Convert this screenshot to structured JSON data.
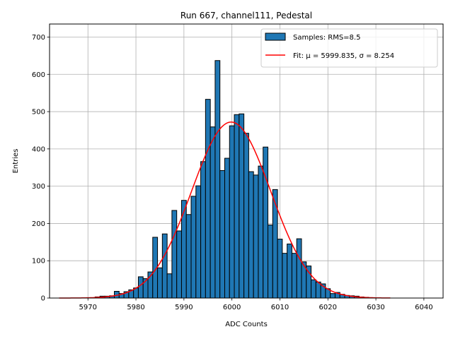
{
  "chart_data": {
    "type": "bar",
    "title": "Run 667, channel111, Pedestal",
    "xlabel": "ADC Counts",
    "ylabel": "Entries",
    "xlim": [
      5962,
      6044
    ],
    "ylim": [
      0,
      735
    ],
    "xticks": [
      5970,
      5980,
      5990,
      6000,
      6010,
      6020,
      6030,
      6040
    ],
    "yticks": [
      0,
      100,
      200,
      300,
      400,
      500,
      600,
      700
    ],
    "grid": true,
    "legend_position": "top-right",
    "colors": {
      "bars": "#1f77b4",
      "bar_edge": "#000000",
      "fit": "#ff0000",
      "grid": "#b0b0b0"
    },
    "histogram": {
      "name": "Samples: RMS=8.5",
      "bin_width": 1,
      "bin_centers": [
        5972,
        5973,
        5974,
        5975,
        5976,
        5977,
        5978,
        5979,
        5980,
        5981,
        5982,
        5983,
        5984,
        5985,
        5986,
        5987,
        5988,
        5989,
        5990,
        5991,
        5992,
        5993,
        5994,
        5995,
        5996,
        5997,
        5998,
        5999,
        6000,
        6001,
        6002,
        6003,
        6004,
        6005,
        6006,
        6007,
        6008,
        6009,
        6010,
        6011,
        6012,
        6013,
        6014,
        6015,
        6016,
        6017,
        6018,
        6019,
        6020,
        6021,
        6022,
        6023,
        6024,
        6025,
        6026,
        6027,
        6028,
        6029
      ],
      "counts": [
        3,
        5,
        5,
        6,
        18,
        12,
        17,
        22,
        27,
        57,
        52,
        70,
        163,
        81,
        172,
        65,
        235,
        180,
        262,
        224,
        273,
        301,
        366,
        533,
        459,
        637,
        342,
        375,
        462,
        492,
        494,
        442,
        339,
        330,
        354,
        405,
        196,
        291,
        158,
        120,
        145,
        120,
        159,
        97,
        86,
        49,
        43,
        38,
        25,
        12,
        15,
        10,
        7,
        6,
        5,
        3,
        2,
        1
      ]
    },
    "fit": {
      "name": "Fit: μ = 5999.835, σ = 8.254",
      "mu": 5999.835,
      "sigma": 8.254,
      "amplitude": 472,
      "x_range": [
        5964,
        6033
      ]
    }
  }
}
